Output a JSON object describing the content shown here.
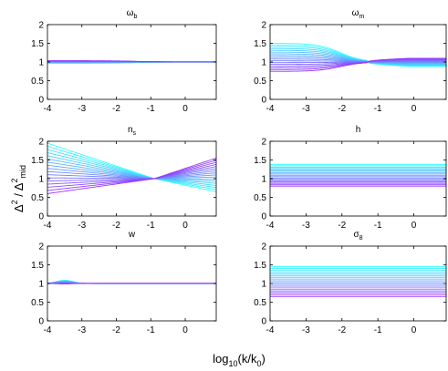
{
  "figure": {
    "ylabel": "Δ² / Δ²mid",
    "ylabel_main": "Δ",
    "ylabel_sup": "2",
    "ylabel_sep": " / Δ",
    "ylabel_sub": "mid",
    "xlabel_prefix": "log",
    "xlabel_sub": "10",
    "xlabel_mid": "(k/k",
    "xlabel_sub2": "0",
    "xlabel_suffix": ")",
    "colors": {
      "start": "#33ffff",
      "end": "#9933ff"
    }
  },
  "chart_data": [
    {
      "type": "line",
      "title": "ω_b",
      "title_main": "ω",
      "title_sub": "b",
      "xlim": [
        -4,
        0.9
      ],
      "ylim": [
        0,
        2
      ],
      "xticks": [
        "-4",
        "-3",
        "-2",
        "-1",
        "0"
      ],
      "yticks": [
        "0",
        "0.5",
        "1",
        "1.5",
        "2"
      ],
      "family": "const",
      "n_curves": 15,
      "description_values": {
        "low": 0.97,
        "high": 1.03,
        "converge_x": -1.5
      }
    },
    {
      "type": "line",
      "title": "ω_m",
      "title_main": "ω",
      "title_sub": "m",
      "xlim": [
        -4,
        0.9
      ],
      "ylim": [
        0,
        2
      ],
      "xticks": [
        "-4",
        "-3",
        "-2",
        "-1",
        "0"
      ],
      "yticks": [
        "0",
        "0.5",
        "1",
        "1.5",
        "2"
      ],
      "family": "omegam",
      "n_curves": 17,
      "description_values": {
        "left_low": 0.75,
        "left_high": 1.5,
        "cross_x": -1.3,
        "right_low": 0.88,
        "right_high": 1.1
      }
    },
    {
      "type": "line",
      "title": "n_s",
      "title_main": "n",
      "title_sub": "s",
      "xlim": [
        -4,
        0.9
      ],
      "ylim": [
        0,
        2
      ],
      "xticks": [
        "-4",
        "-3",
        "-2",
        "-1",
        "0"
      ],
      "yticks": [
        "0",
        "0.5",
        "1",
        "1.5",
        "2"
      ],
      "family": "pivot",
      "n_curves": 17,
      "description_values": {
        "pivot_x": -0.9,
        "left_low": 0.6,
        "left_high": 1.95,
        "right_low": 0.65,
        "right_high": 1.55
      }
    },
    {
      "type": "line",
      "title": "h",
      "title_main": "h",
      "title_sub": "",
      "xlim": [
        -4,
        0.9
      ],
      "ylim": [
        0,
        2
      ],
      "xticks": [
        "-4",
        "-3",
        "-2",
        "-1",
        "0"
      ],
      "yticks": [
        "0",
        "0.5",
        "1",
        "1.5",
        "2"
      ],
      "family": "flat",
      "n_curves": 17,
      "description_values": {
        "low": 0.8,
        "high": 1.38
      }
    },
    {
      "type": "line",
      "title": "w",
      "title_main": "w",
      "title_sub": "",
      "xlim": [
        -4,
        0.9
      ],
      "ylim": [
        0,
        2
      ],
      "xticks": [
        "-4",
        "-3",
        "-2",
        "-1",
        "0"
      ],
      "yticks": [
        "0",
        "0.5",
        "1",
        "1.5",
        "2"
      ],
      "family": "bump",
      "n_curves": 15,
      "description_values": {
        "bump_x": -3.5,
        "bump_amp": 0.09
      }
    },
    {
      "type": "line",
      "title": "σ_8",
      "title_main": "σ",
      "title_sub": "8",
      "xlim": [
        -4,
        0.9
      ],
      "ylim": [
        0,
        2
      ],
      "xticks": [
        "-4",
        "-3",
        "-2",
        "-1",
        "0"
      ],
      "yticks": [
        "0",
        "0.5",
        "1",
        "1.5",
        "2"
      ],
      "family": "flat",
      "n_curves": 17,
      "description_values": {
        "low": 0.65,
        "high": 1.45
      }
    }
  ]
}
